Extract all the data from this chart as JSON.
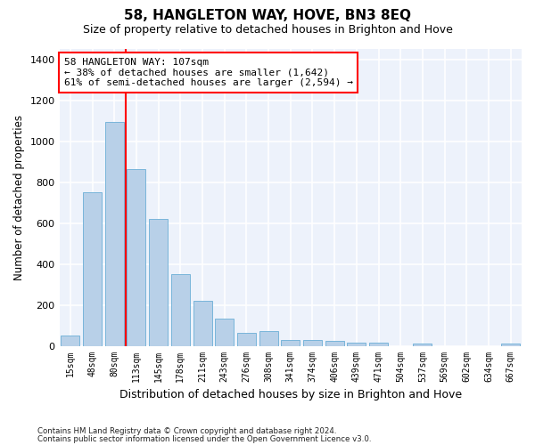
{
  "title": "58, HANGLETON WAY, HOVE, BN3 8EQ",
  "subtitle": "Size of property relative to detached houses in Brighton and Hove",
  "xlabel": "Distribution of detached houses by size in Brighton and Hove",
  "ylabel": "Number of detached properties",
  "categories": [
    "15sqm",
    "48sqm",
    "80sqm",
    "113sqm",
    "145sqm",
    "178sqm",
    "211sqm",
    "243sqm",
    "276sqm",
    "308sqm",
    "341sqm",
    "374sqm",
    "406sqm",
    "439sqm",
    "471sqm",
    "504sqm",
    "537sqm",
    "569sqm",
    "602sqm",
    "634sqm",
    "667sqm"
  ],
  "values": [
    50,
    750,
    1095,
    865,
    620,
    350,
    220,
    135,
    65,
    70,
    30,
    30,
    22,
    15,
    15,
    0,
    12,
    0,
    0,
    0,
    12
  ],
  "bar_color": "#b8d0e8",
  "bar_edgecolor": "#6aaed6",
  "vline_x": 2.5,
  "vline_color": "red",
  "annotation_text": "58 HANGLETON WAY: 107sqm\n← 38% of detached houses are smaller (1,642)\n61% of semi-detached houses are larger (2,594) →",
  "annotation_box_color": "white",
  "annotation_box_edgecolor": "red",
  "ylim": [
    0,
    1450
  ],
  "footnote1": "Contains HM Land Registry data © Crown copyright and database right 2024.",
  "footnote2": "Contains public sector information licensed under the Open Government Licence v3.0.",
  "background_color": "#edf2fb",
  "grid_color": "white",
  "title_fontsize": 11,
  "subtitle_fontsize": 9,
  "tick_fontsize": 7,
  "ylabel_fontsize": 8.5,
  "xlabel_fontsize": 9
}
